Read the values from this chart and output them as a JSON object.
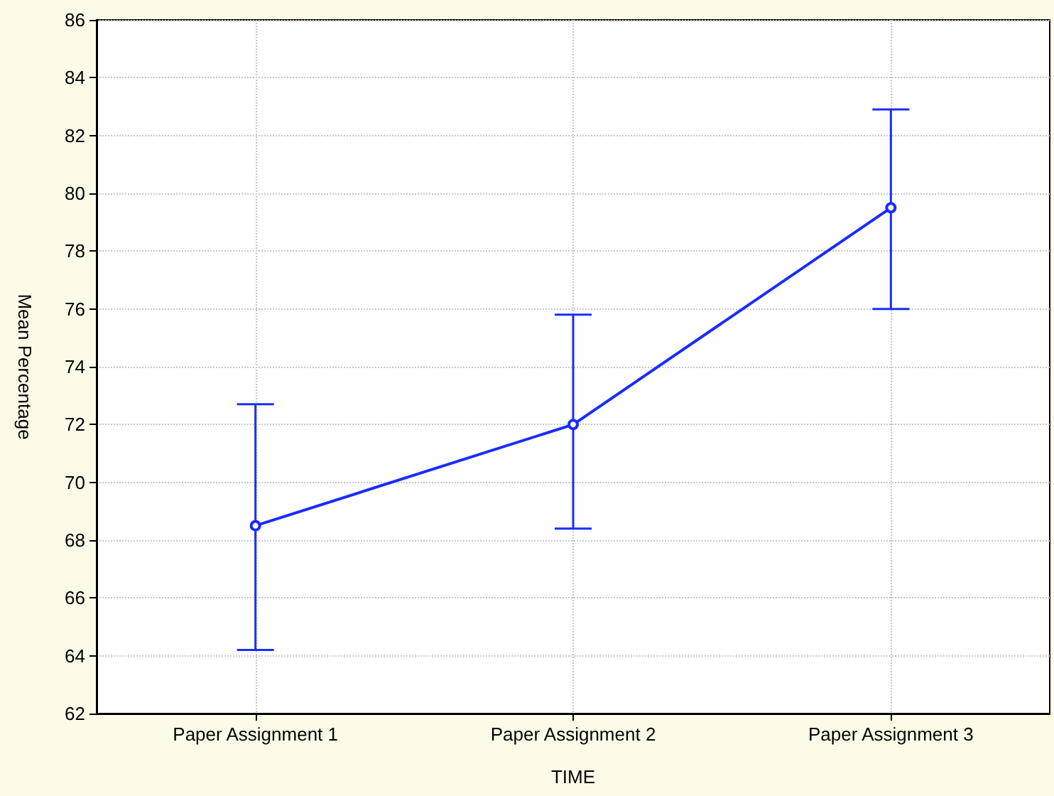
{
  "chart_data": {
    "type": "line",
    "xlabel": "TIME",
    "ylabel": "Mean Percentage",
    "categories": [
      "Paper Assignment 1",
      "Paper Assignment 2",
      "Paper Assignment 3"
    ],
    "series": [
      {
        "color": "#1a2cff",
        "values": [
          68.5,
          72.0,
          79.5
        ],
        "errors": [
          [
            64.2,
            72.7
          ],
          [
            68.4,
            75.8
          ],
          [
            76.0,
            82.9
          ]
        ]
      }
    ],
    "ylim": [
      62,
      86
    ],
    "yticks": [
      62,
      64,
      66,
      68,
      70,
      72,
      74,
      76,
      78,
      80,
      82,
      84,
      86
    ],
    "grid": true,
    "marker": "circle",
    "line_style": "solid"
  }
}
